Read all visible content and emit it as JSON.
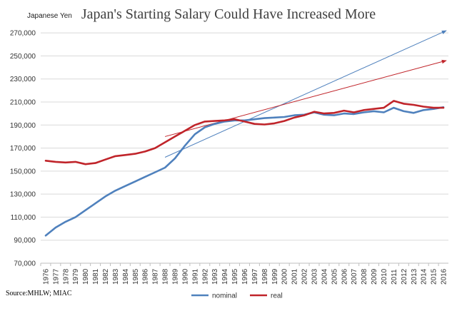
{
  "chart_data": {
    "type": "line",
    "title": "Japan's Starting Salary Could Have Increased More",
    "ylabel": "Japanese Yen",
    "xlabel": "",
    "ylim": [
      70000,
      280000
    ],
    "yticks": [
      70000,
      90000,
      110000,
      130000,
      150000,
      170000,
      190000,
      210000,
      230000,
      250000,
      270000
    ],
    "ytick_labels": [
      "70,000",
      "90,000",
      "110,000",
      "130,000",
      "150,000",
      "170,000",
      "190,000",
      "210,000",
      "230,000",
      "250,000",
      "270,000"
    ],
    "categories": [
      "1976",
      "1977",
      "1978",
      "1979",
      "1980",
      "1981",
      "1982",
      "1983",
      "1984",
      "1985",
      "1986",
      "1987",
      "1988",
      "1989",
      "1990",
      "1991",
      "1992",
      "1993",
      "1994",
      "1995",
      "1996",
      "1997",
      "1998",
      "1999",
      "2000",
      "2001",
      "2002",
      "2003",
      "2004",
      "2005",
      "2006",
      "2007",
      "2008",
      "2009",
      "2010",
      "2011",
      "2012",
      "2013",
      "2014",
      "2015",
      "2016"
    ],
    "grid": true,
    "legend_position": "bottom",
    "series": [
      {
        "name": "nominal",
        "color": "#4f81bd",
        "values": [
          94000,
          101000,
          106000,
          110000,
          116000,
          122000,
          128000,
          133000,
          137000,
          141000,
          145000,
          149000,
          153000,
          161000,
          172000,
          182000,
          188000,
          191000,
          193000,
          194000,
          194000,
          195000,
          196000,
          196500,
          197000,
          198500,
          199000,
          201000,
          199000,
          198500,
          200000,
          199500,
          201000,
          202000,
          201000,
          205000,
          202000,
          200500,
          203000,
          204000,
          205500
        ]
      },
      {
        "name": "real",
        "color": "#c0242a",
        "values": [
          159000,
          158000,
          157500,
          158000,
          156000,
          157000,
          160000,
          163000,
          164000,
          165000,
          167000,
          170000,
          175000,
          180000,
          185000,
          190000,
          193000,
          193500,
          194000,
          195000,
          193000,
          191000,
          190500,
          191500,
          193500,
          196500,
          198500,
          201500,
          200000,
          200500,
          202500,
          201000,
          203000,
          204000,
          205000,
          211000,
          208500,
          207500,
          206000,
          205000,
          205000
        ]
      }
    ],
    "trendlines": [
      {
        "series": "nominal",
        "color": "#4f81bd",
        "from": {
          "x": "1988",
          "y": 162000
        },
        "to": {
          "x": "2016",
          "y": 272000
        }
      },
      {
        "series": "real",
        "color": "#c0242a",
        "from": {
          "x": "1988",
          "y": 180000
        },
        "to": {
          "x": "2016",
          "y": 246000
        }
      }
    ],
    "source": "Source:MHLW; MIAC"
  }
}
